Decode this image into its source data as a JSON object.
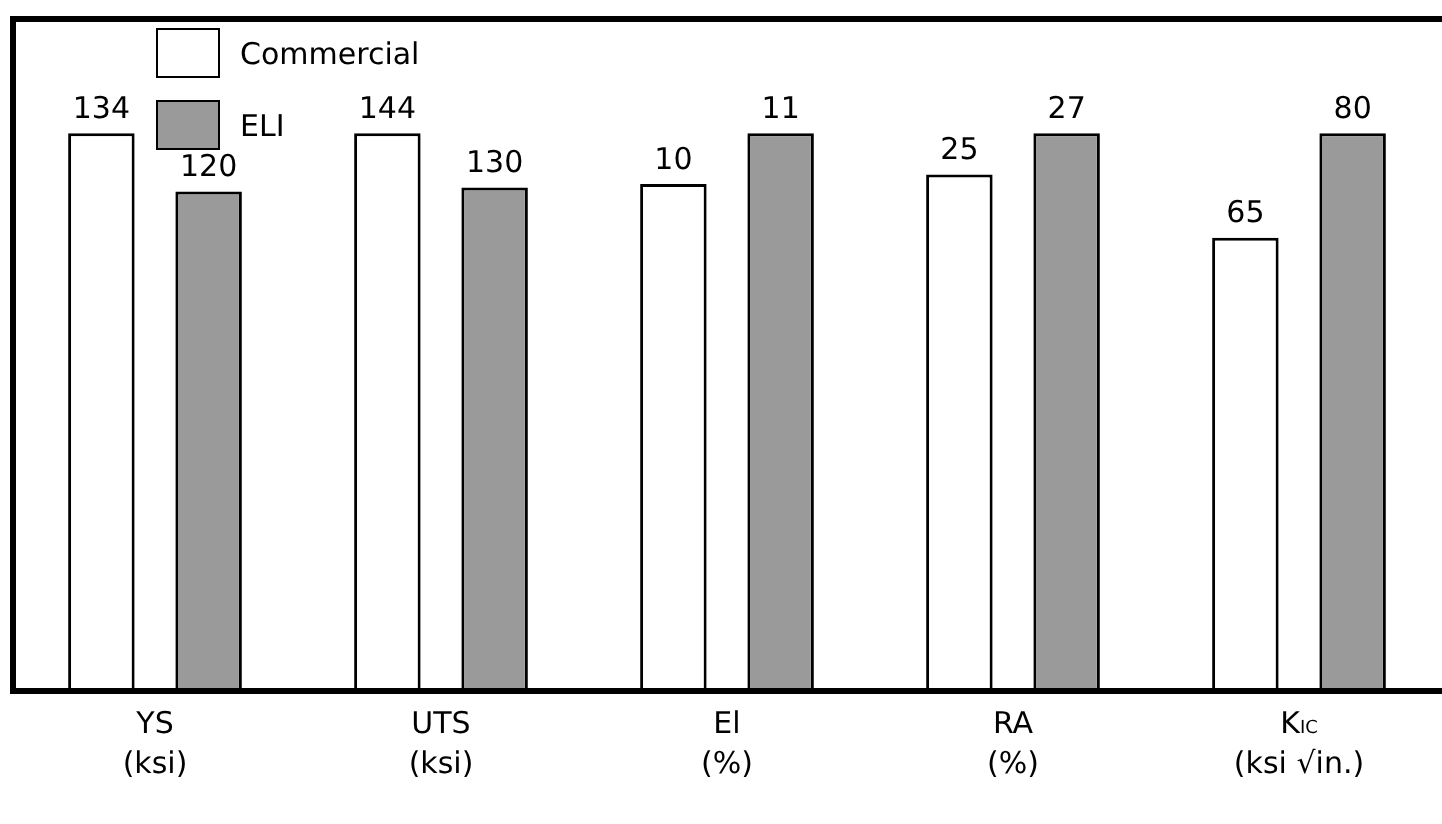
{
  "chart_data": [
    {
      "type": "bar",
      "categories": [
        "YS\n(ksi)"
      ],
      "series": [
        {
          "name": "Commercial",
          "color": "#ffffff",
          "values": [
            134
          ]
        },
        {
          "name": "ELI",
          "color": "#9a9a9a",
          "values": [
            120
          ]
        }
      ],
      "data_labels": true,
      "legend": "top right",
      "grid": false
    },
    {
      "type": "bar",
      "categories": [
        "UTS\n(ksi)"
      ],
      "series": [
        {
          "color": "#ffffff",
          "values": [
            144
          ]
        },
        {
          "color": "#9a9a9a",
          "values": [
            130
          ]
        }
      ],
      "data_labels": true,
      "grid": false
    },
    {
      "type": "bar",
      "categories": [
        "El\n(%)"
      ],
      "series": [
        {
          "color": "#ffffff",
          "values": [
            10
          ]
        },
        {
          "color": "#9a9a9a",
          "values": [
            11
          ]
        }
      ],
      "data_labels": true,
      "grid": false
    },
    {
      "type": "bar",
      "categories": [
        "RA\n(%)"
      ],
      "series": [
        {
          "color": "#ffffff",
          "values": [
            25
          ]
        },
        {
          "color": "#9a9a9a",
          "values": [
            27
          ]
        }
      ],
      "data_labels": true,
      "grid": false
    },
    {
      "type": "bar",
      "categories": [
        "K$_{IC}$\n(ksi √in.)"
      ],
      "series": [
        {
          "color": "#ffffff",
          "values": [
            65
          ]
        },
        {
          "color": "#9a9a9a",
          "values": [
            80
          ]
        }
      ],
      "data_labels": true,
      "grid": false
    }
  ]
}
